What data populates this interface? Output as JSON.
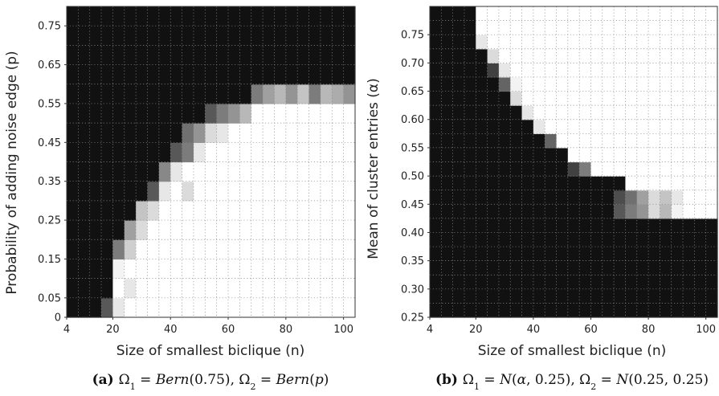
{
  "chart_data": [
    {
      "type": "heatmap",
      "title": "",
      "xlabel": "Size of smallest biclique (n)",
      "ylabel": "Probability of adding noise edge (p)",
      "x_ticks": [
        "4",
        "20",
        "40",
        "60",
        "80",
        "100"
      ],
      "y_ticks": [
        "0",
        "0.05",
        "0.15",
        "0.25",
        "0.35",
        "0.45",
        "0.55",
        "0.65",
        "0.75"
      ],
      "xlim": [
        4,
        104
      ],
      "ylim": [
        0,
        0.8
      ],
      "grid": true,
      "colors": {
        "high": "#ffffff",
        "low": "#111111"
      },
      "caption": {
        "label": "(a)",
        "parts": [
          "Ω",
          "1",
          " = ",
          "Bern",
          "(0.75), ",
          "Ω",
          "2",
          " = ",
          "Bern",
          "(",
          "p",
          ")"
        ]
      },
      "x": [
        4,
        8,
        12,
        16,
        20,
        24,
        28,
        32,
        36,
        40,
        44,
        48,
        52,
        56,
        60,
        64,
        68,
        72,
        76,
        80,
        84,
        88,
        92,
        96,
        100
      ],
      "y": [
        0.0,
        0.05,
        0.1,
        0.15,
        0.2,
        0.25,
        0.3,
        0.35,
        0.4,
        0.45,
        0.5,
        0.55,
        0.6,
        0.65,
        0.7,
        0.75
      ],
      "values": [
        [
          0,
          0,
          0,
          0.3,
          0.9,
          1,
          1,
          1,
          1,
          1,
          1,
          1,
          1,
          1,
          1,
          1,
          1,
          1,
          1,
          1,
          1,
          1,
          1,
          1,
          1
        ],
        [
          0,
          0,
          0,
          0,
          1,
          0.9,
          1,
          1,
          1,
          1,
          1,
          1,
          1,
          1,
          1,
          1,
          1,
          1,
          1,
          1,
          1,
          1,
          1,
          1,
          1
        ],
        [
          0,
          0,
          0,
          0,
          0.95,
          1,
          1,
          1,
          1,
          1,
          1,
          1,
          1,
          1,
          1,
          1,
          1,
          1,
          1,
          1,
          1,
          1,
          1,
          1,
          1
        ],
        [
          0,
          0,
          0,
          0,
          0.45,
          0.8,
          1,
          1,
          1,
          1,
          1,
          1,
          1,
          1,
          1,
          1,
          1,
          1,
          1,
          1,
          1,
          1,
          1,
          1,
          1
        ],
        [
          0,
          0,
          0,
          0,
          0,
          0.6,
          0.85,
          1,
          1,
          1,
          1,
          1,
          1,
          1,
          1,
          1,
          1,
          1,
          1,
          1,
          1,
          1,
          1,
          1,
          1
        ],
        [
          0,
          0,
          0,
          0,
          0,
          0,
          0.75,
          0.85,
          1,
          1,
          1,
          1,
          1,
          1,
          1,
          1,
          1,
          1,
          1,
          1,
          1,
          1,
          1,
          1,
          1
        ],
        [
          0,
          0,
          0,
          0,
          0,
          0,
          0,
          0.3,
          0.9,
          1,
          0.85,
          1,
          1,
          1,
          1,
          1,
          1,
          1,
          1,
          1,
          1,
          1,
          1,
          1,
          1
        ],
        [
          0,
          0,
          0,
          0,
          0,
          0,
          0,
          0,
          0.5,
          0.9,
          1,
          1,
          1,
          1,
          1,
          1,
          1,
          1,
          1,
          1,
          1,
          1,
          1,
          1,
          1
        ],
        [
          0,
          0,
          0,
          0,
          0,
          0,
          0,
          0,
          0,
          0.3,
          0.45,
          0.9,
          1,
          1,
          1,
          1,
          1,
          1,
          1,
          1,
          1,
          1,
          1,
          1,
          1
        ],
        [
          0,
          0,
          0,
          0,
          0,
          0,
          0,
          0,
          0,
          0,
          0.4,
          0.55,
          0.85,
          0.9,
          1,
          1,
          1,
          1,
          1,
          1,
          1,
          1,
          1,
          1,
          1
        ],
        [
          0,
          0,
          0,
          0,
          0,
          0,
          0,
          0,
          0,
          0,
          0,
          0,
          0.3,
          0.45,
          0.55,
          0.7,
          1,
          1,
          1,
          1,
          1,
          1,
          1,
          1,
          1
        ],
        [
          0,
          0,
          0,
          0,
          0,
          0,
          0,
          0,
          0,
          0,
          0,
          0,
          0,
          0,
          0,
          0,
          0.45,
          0.6,
          0.7,
          0.55,
          0.75,
          0.45,
          0.7,
          0.65,
          0.55
        ],
        [
          0,
          0,
          0,
          0,
          0,
          0,
          0,
          0,
          0,
          0,
          0,
          0,
          0,
          0,
          0,
          0,
          0,
          0,
          0,
          0,
          0,
          0,
          0,
          0,
          0
        ],
        [
          0,
          0,
          0,
          0,
          0,
          0,
          0,
          0,
          0,
          0,
          0,
          0,
          0,
          0,
          0,
          0,
          0,
          0,
          0,
          0,
          0,
          0,
          0,
          0,
          0
        ],
        [
          0,
          0,
          0,
          0,
          0,
          0,
          0,
          0,
          0,
          0,
          0,
          0,
          0,
          0,
          0,
          0,
          0,
          0,
          0,
          0,
          0,
          0,
          0,
          0,
          0
        ],
        [
          0,
          0,
          0,
          0,
          0,
          0,
          0,
          0,
          0,
          0,
          0,
          0,
          0,
          0,
          0,
          0,
          0,
          0,
          0,
          0,
          0,
          0,
          0,
          0,
          0
        ]
      ]
    },
    {
      "type": "heatmap",
      "title": "",
      "xlabel": "Size of smallest biclique (n)",
      "ylabel": "Mean of cluster entries (α)",
      "x_ticks": [
        "4",
        "20",
        "40",
        "60",
        "80",
        "100"
      ],
      "y_ticks": [
        "0.25",
        "0.30",
        "0.35",
        "0.40",
        "0.45",
        "0.50",
        "0.55",
        "0.60",
        "0.65",
        "0.70",
        "0.75"
      ],
      "xlim": [
        4,
        104
      ],
      "ylim": [
        0.25,
        0.8
      ],
      "grid": true,
      "colors": {
        "high": "#ffffff",
        "low": "#111111"
      },
      "caption": {
        "label": "(b)",
        "parts": [
          "Ω",
          "1",
          " = ",
          "N",
          "(",
          "α",
          ", 0.25), ",
          "Ω",
          "2",
          " = ",
          "N",
          "(0.25, 0.25)"
        ]
      },
      "x": [
        4,
        8,
        12,
        16,
        20,
        24,
        28,
        32,
        36,
        40,
        44,
        48,
        52,
        56,
        60,
        64,
        68,
        72,
        76,
        80,
        84,
        88,
        92,
        96,
        100
      ],
      "y": [
        0.25,
        0.275,
        0.3,
        0.325,
        0.35,
        0.375,
        0.4,
        0.425,
        0.45,
        0.475,
        0.5,
        0.525,
        0.55,
        0.575,
        0.6,
        0.625,
        0.65,
        0.675,
        0.7,
        0.725,
        0.75,
        0.775
      ],
      "values": [
        [
          0,
          0,
          0,
          0,
          0,
          0,
          0,
          0,
          0,
          0,
          0,
          0,
          0,
          0,
          0,
          0,
          0,
          0,
          0,
          0,
          0,
          0,
          0,
          0,
          0
        ],
        [
          0,
          0,
          0,
          0,
          0,
          0,
          0,
          0,
          0,
          0,
          0,
          0,
          0,
          0,
          0,
          0,
          0,
          0,
          0,
          0,
          0,
          0,
          0,
          0,
          0
        ],
        [
          0,
          0,
          0,
          0,
          0,
          0,
          0,
          0,
          0,
          0,
          0,
          0,
          0,
          0,
          0,
          0,
          0,
          0,
          0,
          0,
          0,
          0,
          0,
          0,
          0
        ],
        [
          0,
          0,
          0,
          0,
          0,
          0,
          0,
          0,
          0,
          0,
          0,
          0,
          0,
          0,
          0,
          0,
          0,
          0,
          0,
          0,
          0,
          0,
          0,
          0,
          0
        ],
        [
          0,
          0,
          0,
          0,
          0,
          0,
          0,
          0,
          0,
          0,
          0,
          0,
          0,
          0,
          0,
          0,
          0,
          0,
          0,
          0,
          0,
          0,
          0,
          0,
          0
        ],
        [
          0,
          0,
          0,
          0,
          0,
          0,
          0,
          0,
          0,
          0,
          0,
          0,
          0,
          0,
          0,
          0,
          0,
          0,
          0,
          0,
          0,
          0,
          0,
          0,
          0
        ],
        [
          0,
          0,
          0,
          0,
          0,
          0,
          0,
          0,
          0,
          0,
          0,
          0,
          0,
          0,
          0,
          0,
          0,
          0,
          0,
          0,
          0,
          0,
          0,
          0,
          0
        ],
        [
          0,
          0,
          0,
          0,
          0,
          0,
          0,
          0,
          0,
          0,
          0,
          0,
          0,
          0,
          0,
          0,
          0.3,
          0.45,
          0.55,
          0.85,
          0.7,
          0.95,
          1,
          1,
          1
        ],
        [
          0,
          0,
          0,
          0,
          0,
          0,
          0,
          0,
          0,
          0,
          0,
          0,
          0,
          0,
          0,
          0,
          0.25,
          0.4,
          0.6,
          0.85,
          0.75,
          0.9,
          1,
          1,
          1
        ],
        [
          0,
          0,
          0,
          0,
          0,
          0,
          0,
          0,
          0,
          0,
          0,
          0,
          0,
          0,
          0,
          0,
          0,
          1,
          1,
          1,
          1,
          1,
          1,
          1,
          1
        ],
        [
          0,
          0,
          0,
          0,
          0,
          0,
          0,
          0,
          0,
          0,
          0,
          0,
          0.2,
          0.45,
          1,
          1,
          1,
          1,
          1,
          1,
          1,
          1,
          1,
          1,
          1
        ],
        [
          0,
          0,
          0,
          0,
          0,
          0,
          0,
          0,
          0,
          0,
          0,
          0,
          1,
          1,
          1,
          1,
          1,
          1,
          1,
          1,
          1,
          1,
          1,
          1,
          1
        ],
        [
          0,
          0,
          0,
          0,
          0,
          0,
          0,
          0,
          0,
          0,
          0.35,
          1,
          1,
          1,
          1,
          1,
          1,
          1,
          1,
          1,
          1,
          1,
          1,
          1,
          1
        ],
        [
          0,
          0,
          0,
          0,
          0,
          0,
          0,
          0,
          0,
          0.9,
          1,
          1,
          1,
          1,
          1,
          1,
          1,
          1,
          1,
          1,
          1,
          1,
          1,
          1,
          1
        ],
        [
          0,
          0,
          0,
          0,
          0,
          0,
          0,
          0,
          0.9,
          1,
          1,
          1,
          1,
          1,
          1,
          1,
          1,
          1,
          1,
          1,
          1,
          1,
          1,
          1,
          1
        ],
        [
          0,
          0,
          0,
          0,
          0,
          0,
          0,
          0.85,
          1,
          1,
          1,
          1,
          1,
          1,
          1,
          1,
          1,
          1,
          1,
          1,
          1,
          1,
          1,
          1,
          1
        ],
        [
          0,
          0,
          0,
          0,
          0,
          0,
          0.35,
          0.95,
          1,
          1,
          1,
          1,
          1,
          1,
          1,
          1,
          1,
          1,
          1,
          1,
          1,
          1,
          1,
          1,
          1
        ],
        [
          0,
          0,
          0,
          0,
          0,
          0.2,
          0.9,
          1,
          1,
          1,
          1,
          1,
          1,
          1,
          1,
          1,
          1,
          1,
          1,
          1,
          1,
          1,
          1,
          1,
          1
        ],
        [
          0,
          0,
          0,
          0,
          0,
          0.85,
          1,
          1,
          1,
          1,
          1,
          1,
          1,
          1,
          1,
          1,
          1,
          1,
          1,
          1,
          1,
          1,
          1,
          1,
          1
        ],
        [
          0,
          0,
          0,
          0,
          0.9,
          1,
          1,
          1,
          1,
          1,
          1,
          1,
          1,
          1,
          1,
          1,
          1,
          1,
          1,
          1,
          1,
          1,
          1,
          1,
          1
        ],
        [
          0,
          0,
          0,
          0,
          1,
          1,
          1,
          1,
          1,
          1,
          1,
          1,
          1,
          1,
          1,
          1,
          1,
          1,
          1,
          1,
          1,
          1,
          1,
          1,
          1
        ],
        [
          0,
          0,
          0,
          0,
          1,
          1,
          1,
          1,
          1,
          1,
          1,
          1,
          1,
          1,
          1,
          1,
          1,
          1,
          1,
          1,
          1,
          1,
          1,
          1,
          1
        ]
      ]
    }
  ]
}
